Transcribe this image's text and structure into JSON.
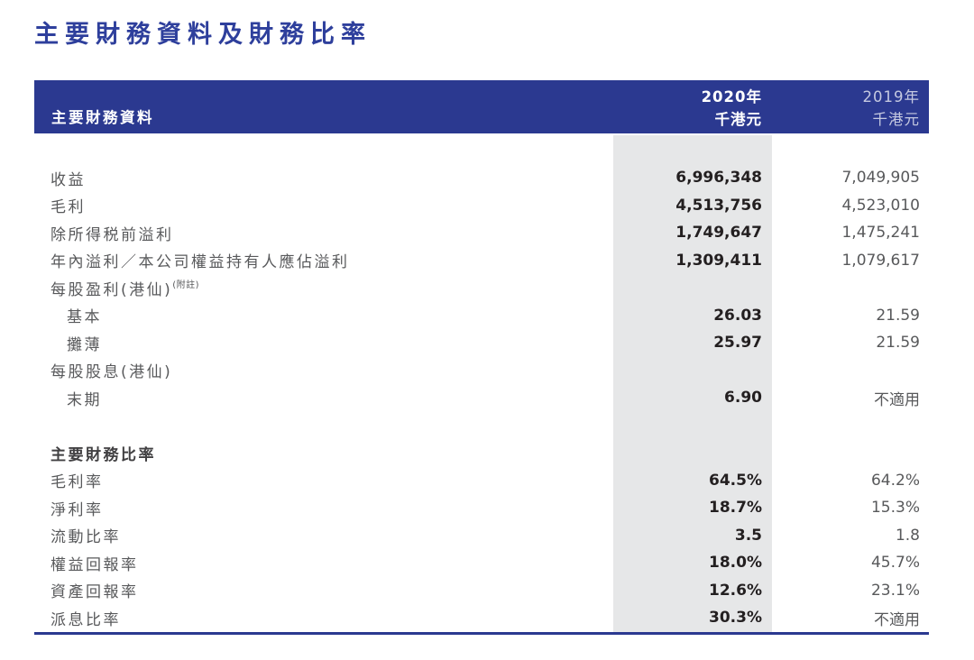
{
  "page": {
    "title": "主要財務資料及財務比率"
  },
  "colors": {
    "accent_blue": "#2b3990",
    "column_highlight": "#e6e7e8",
    "value_bold": "#231f20",
    "text_gray": "#58595b"
  },
  "table": {
    "section_label": "主要財務資料",
    "columns": [
      {
        "year": "2020年",
        "unit": "千港元",
        "highlighted": true
      },
      {
        "year": "2019年",
        "unit": "千港元",
        "highlighted": false
      }
    ],
    "rows": [
      {
        "label": "收益",
        "v2020": "6,996,348",
        "v2019": "7,049,905"
      },
      {
        "label": "毛利",
        "v2020": "4,513,756",
        "v2019": "4,523,010"
      },
      {
        "label": "除所得税前溢利",
        "v2020": "1,749,647",
        "v2019": "1,475,241"
      },
      {
        "label": "年內溢利／本公司權益持有人應佔溢利",
        "v2020": "1,309,411",
        "v2019": "1,079,617"
      },
      {
        "label": "每股盈利(港仙)",
        "superscript": "(附註)",
        "v2020": "",
        "v2019": ""
      },
      {
        "label": "基本",
        "indent": 1,
        "v2020": "26.03",
        "v2019": "21.59"
      },
      {
        "label": "攤薄",
        "indent": 1,
        "v2020": "25.97",
        "v2019": "21.59"
      },
      {
        "label": "每股股息(港仙)",
        "v2020": "",
        "v2019": ""
      },
      {
        "label": "末期",
        "indent": 1,
        "v2020": "6.90",
        "v2019": "不適用"
      },
      {
        "label": "",
        "spacer": true,
        "v2020": "",
        "v2019": ""
      },
      {
        "label": "主要財務比率",
        "bold": true,
        "v2020": "",
        "v2019": ""
      },
      {
        "label": "毛利率",
        "v2020": "64.5%",
        "v2019": "64.2%"
      },
      {
        "label": "淨利率",
        "v2020": "18.7%",
        "v2019": "15.3%"
      },
      {
        "label": "流動比率",
        "v2020": "3.5",
        "v2019": "1.8"
      },
      {
        "label": "權益回報率",
        "v2020": "18.0%",
        "v2019": "45.7%"
      },
      {
        "label": "資產回報率",
        "v2020": "12.6%",
        "v2019": "23.1%"
      },
      {
        "label": "派息比率",
        "v2020": "30.3%",
        "v2019": "不適用"
      }
    ]
  }
}
